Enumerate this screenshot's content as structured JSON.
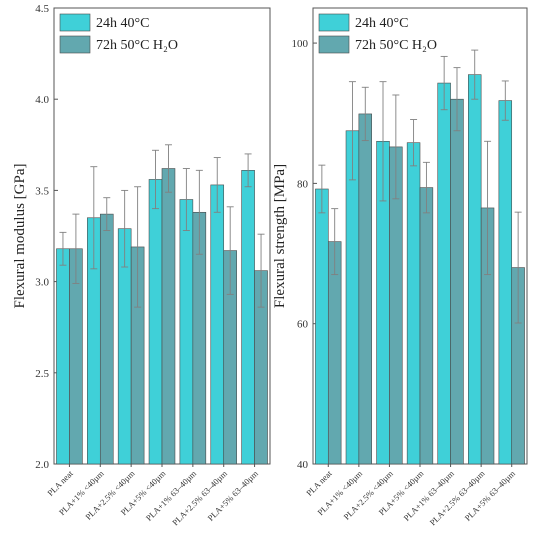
{
  "colors": {
    "series_a": "#3fd0d8",
    "series_b": "#62a8af",
    "error_bar": "#808080",
    "frame": "#555555"
  },
  "chart_data": [
    {
      "type": "bar",
      "categories": [
        "PLA neat",
        "PLA+1% <40µm",
        "PLA+2.5% <40µm",
        "PLA+5% <40µm",
        "PLA+1% 63–40µm",
        "PLA+2.5% 63–40µm",
        "PLA+5% 63–40µm"
      ],
      "series": [
        {
          "name": "24h 40°C",
          "values": [
            3.18,
            3.35,
            3.29,
            3.56,
            3.45,
            3.53,
            3.61
          ],
          "errors": [
            0.09,
            0.28,
            0.21,
            0.16,
            0.17,
            0.15,
            0.09
          ]
        },
        {
          "name": "72h 50°C H₂O",
          "values": [
            3.18,
            3.37,
            3.19,
            3.62,
            3.38,
            3.17,
            3.06
          ],
          "errors": [
            0.19,
            0.09,
            0.33,
            0.13,
            0.23,
            0.24,
            0.2
          ]
        }
      ],
      "ylabel": "Flexural modulus [GPa]",
      "ylim": [
        2.0,
        4.5
      ],
      "yticks": [
        "2.0",
        "2.5",
        "3.0",
        "3.5",
        "4.0",
        "4.5"
      ],
      "legend": "top-left",
      "grid": false
    },
    {
      "type": "bar",
      "categories": [
        "PLA neat",
        "PLA+1% <40µm",
        "PLA+2.5% <40µm",
        "PLA+5% <40µm",
        "PLA+1% 63–40µm",
        "PLA+2.5% 63–40µm",
        "PLA+5% 63–40µm"
      ],
      "series": [
        {
          "name": "24h 40°C",
          "values": [
            79.2,
            87.5,
            86.0,
            85.8,
            94.3,
            95.5,
            91.8
          ],
          "errors": [
            3.4,
            7.0,
            8.5,
            3.3,
            3.8,
            3.5,
            2.8
          ]
        },
        {
          "name": "72h 50°C H₂O",
          "values": [
            71.7,
            89.9,
            85.2,
            79.4,
            92.0,
            76.5,
            68.0
          ],
          "errors": [
            4.7,
            3.8,
            7.4,
            3.6,
            4.5,
            9.5,
            7.9
          ]
        }
      ],
      "ylabel": "Flexural strength [MPa]",
      "ylim": [
        40,
        105
      ],
      "yticks": [
        "40",
        "60",
        "80",
        "100"
      ],
      "legend": "top-left",
      "grid": false
    }
  ]
}
